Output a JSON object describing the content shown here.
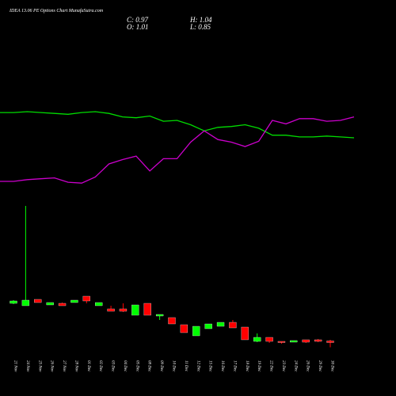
{
  "chart_data": {
    "type": "candlestick",
    "title": "IDEA 13.06 PE Options Chart MunafaSutra.com",
    "info": {
      "close": "C: 0.97",
      "open": "O: 1.01",
      "high": "H: 1.04",
      "low": "L: 0.85"
    },
    "categories": [
      "21 Nov",
      "24 Nov",
      "25 Nov",
      "26 Nov",
      "27 Nov",
      "28 Nov",
      "01 Dec",
      "02 Dec",
      "03 Dec",
      "04 Dec",
      "05 Dec",
      "08 Dec",
      "09 Dec",
      "10 Dec",
      "11 Dec",
      "12 Dec",
      "15 Dec",
      "16 Dec",
      "17 Dec",
      "18 Dec",
      "19 Dec",
      "22 Dec",
      "23 Dec",
      "24 Dec",
      "26 Dec",
      "29 Dec",
      "30 Dec"
    ],
    "open": [
      1.96,
      1.9,
      2.06,
      1.92,
      1.96,
      1.98,
      2.14,
      1.9,
      1.82,
      1.82,
      1.66,
      1.96,
      1.64,
      1.6,
      1.42,
      1.14,
      1.32,
      1.38,
      1.48,
      1.36,
      1.0,
      1.1,
      1.0,
      0.98,
      1.04,
      1.04,
      1.01
    ],
    "high": [
      2.04,
      4.42,
      2.06,
      1.98,
      1.98,
      2.04,
      2.14,
      1.98,
      1.9,
      1.96,
      1.92,
      1.96,
      1.68,
      1.6,
      1.42,
      1.38,
      1.44,
      1.48,
      1.54,
      1.36,
      1.2,
      1.1,
      1.0,
      1.02,
      1.04,
      1.06,
      1.04
    ],
    "low": [
      1.94,
      1.9,
      1.98,
      1.92,
      1.9,
      1.98,
      1.96,
      1.9,
      1.76,
      1.74,
      1.66,
      1.66,
      1.54,
      1.44,
      1.22,
      1.14,
      1.32,
      1.38,
      1.34,
      1.04,
      0.98,
      0.96,
      0.94,
      0.98,
      0.96,
      0.98,
      0.85
    ],
    "close": [
      2.02,
      2.04,
      1.98,
      1.98,
      1.9,
      2.04,
      2.02,
      1.98,
      1.76,
      1.76,
      1.92,
      1.66,
      1.68,
      1.44,
      1.22,
      1.38,
      1.44,
      1.48,
      1.34,
      1.04,
      1.1,
      1.0,
      0.98,
      1.02,
      0.98,
      1.0,
      0.97
    ],
    "up_color": "#00ff00",
    "down_color": "#ff0000",
    "ylim": [
      0.6,
      4.6
    ],
    "lines": [
      {
        "color": "#00dd00",
        "values": [
          89,
          89,
          90,
          89,
          88,
          87,
          89,
          90,
          88,
          84,
          83,
          85,
          79,
          80,
          75,
          68,
          72,
          73,
          75,
          71,
          63,
          63,
          61,
          61,
          62,
          61,
          60
        ]
      },
      {
        "color": "#cc00cc",
        "values": [
          10,
          10,
          12,
          13,
          14,
          9,
          8,
          15,
          30,
          35,
          39,
          22,
          36,
          36,
          55,
          68,
          58,
          55,
          50,
          56,
          80,
          76,
          82,
          82,
          79,
          80,
          84
        ]
      }
    ],
    "lines_ylim": [
      0,
      100
    ]
  }
}
